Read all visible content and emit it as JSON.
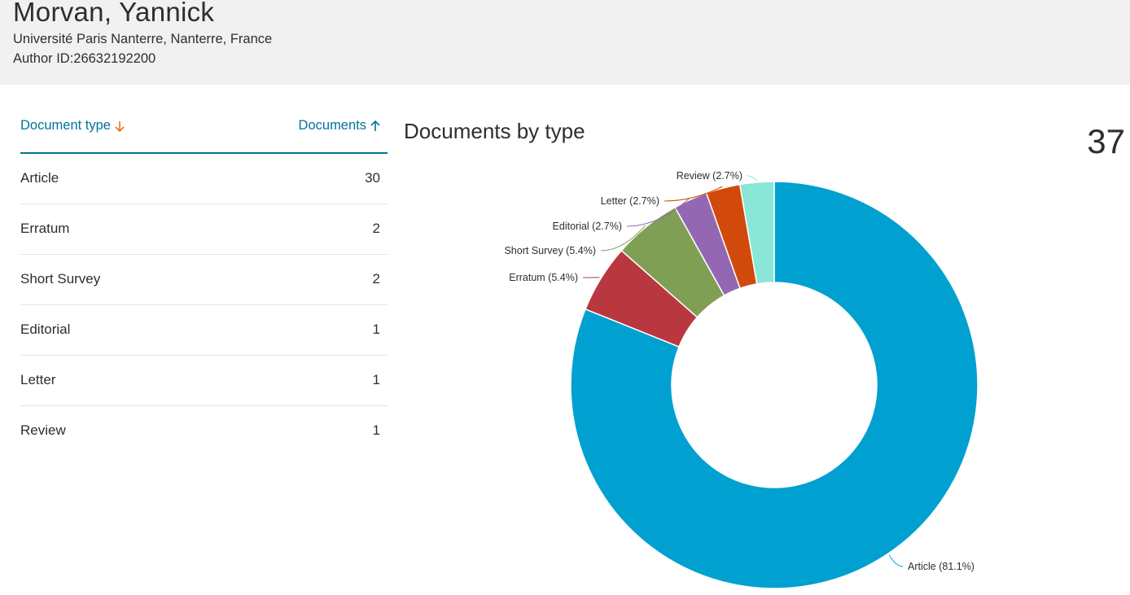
{
  "author": {
    "name": "Morvan, Yannick",
    "affiliation": "Université Paris Nanterre, Nanterre, France",
    "author_id": "Author ID:26632192200"
  },
  "table": {
    "col_type": "Document type",
    "col_docs": "Documents",
    "rows": [
      {
        "type": "Article",
        "count": "30"
      },
      {
        "type": "Erratum",
        "count": "2"
      },
      {
        "type": "Short Survey",
        "count": "2"
      },
      {
        "type": "Editorial",
        "count": "1"
      },
      {
        "type": "Letter",
        "count": "1"
      },
      {
        "type": "Review",
        "count": "1"
      }
    ]
  },
  "colors": {
    "accent": "#007398",
    "sort_arrow_type": "#e9711c"
  },
  "icons": {
    "sort_type": "arrow-down-icon",
    "sort_docs": "arrow-up-icon"
  },
  "chart_data": {
    "type": "pie",
    "title": "Documents by type",
    "total": "37",
    "categories": [
      "Article",
      "Erratum",
      "Short Survey",
      "Editorial",
      "Letter",
      "Review"
    ],
    "values": [
      30,
      2,
      2,
      1,
      1,
      1
    ],
    "labels": [
      "Article (81.1%)",
      "Erratum (5.4%)",
      "Short Survey (5.4%)",
      "Editorial (2.7%)",
      "Letter (2.7%)",
      "Review (2.7%)"
    ],
    "colors": [
      "#00a0d0",
      "#b9383f",
      "#7f9f55",
      "#9467b3",
      "#d14a0b",
      "#8ae6d6"
    ],
    "donut": true
  }
}
